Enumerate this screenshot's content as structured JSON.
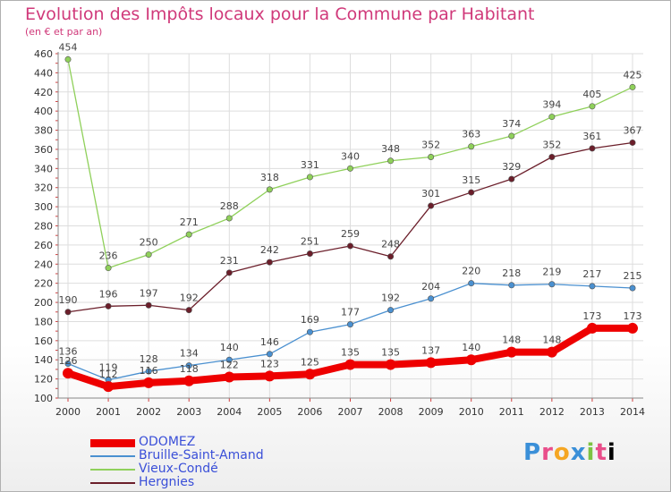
{
  "chart_data": {
    "type": "line",
    "title": "Evolution des Impôts locaux pour la Commune par Habitant",
    "subtitle": "(en € et par an)",
    "xlabel": "",
    "ylabel": "",
    "x": [
      "2000",
      "2001",
      "2002",
      "2003",
      "2004",
      "2005",
      "2006",
      "2007",
      "2008",
      "2009",
      "2010",
      "2011",
      "2012",
      "2013",
      "2014"
    ],
    "ylim": [
      100,
      460
    ],
    "yticks": [
      100,
      120,
      140,
      160,
      180,
      200,
      220,
      240,
      260,
      280,
      300,
      320,
      340,
      360,
      380,
      400,
      420,
      440,
      460
    ],
    "grid": true,
    "legend_position": "bottom-left",
    "series": [
      {
        "name": "ODOMEZ",
        "color": "#ee0000",
        "values": [
          126,
          112,
          116,
          118,
          122,
          123,
          125,
          135,
          135,
          137,
          140,
          148,
          148,
          173,
          173
        ]
      },
      {
        "name": "Bruille-Saint-Amand",
        "color": "#4a90d0",
        "values": [
          136,
          119,
          128,
          134,
          140,
          146,
          169,
          177,
          192,
          204,
          220,
          218,
          219,
          217,
          215
        ]
      },
      {
        "name": "Vieux-Condé",
        "color": "#8fd05a",
        "values": [
          454,
          236,
          250,
          271,
          288,
          318,
          331,
          340,
          348,
          352,
          363,
          374,
          394,
          405,
          425
        ]
      },
      {
        "name": "Hergnies",
        "color": "#6b1e2a",
        "values": [
          190,
          196,
          197,
          192,
          231,
          242,
          251,
          259,
          248,
          301,
          315,
          329,
          352,
          361,
          367
        ]
      }
    ]
  },
  "logo": {
    "letters": [
      "P",
      "r",
      "o",
      "x",
      "i",
      "t",
      "i"
    ]
  }
}
